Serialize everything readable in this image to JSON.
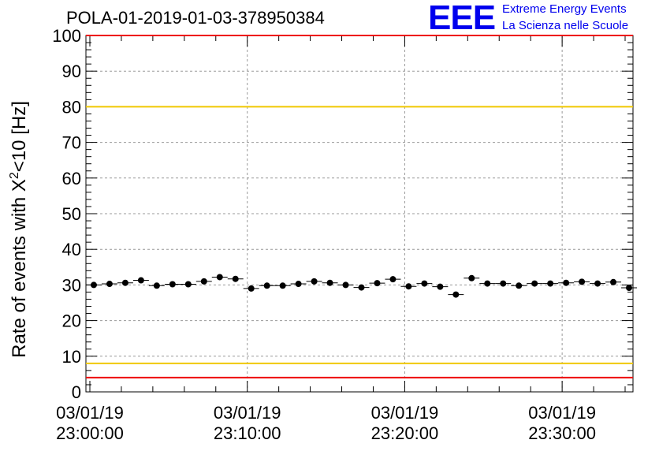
{
  "header": {
    "title": "POLA-01-2019-01-03-378950384",
    "logo_text": "EEE",
    "logo_line1": "Extreme Energy Events",
    "logo_line2": "La Scienza nelle Scuole"
  },
  "colors": {
    "logo": "#0000ee",
    "limit_red": "#ee0000",
    "limit_yellow": "#f0c800",
    "points": "#000000",
    "grid": "#999999"
  },
  "chart_data": {
    "type": "scatter",
    "title": "POLA-01-2019-01-03-378950384",
    "xlabel": "",
    "ylabel": "Rate of events with X²<10 [Hz]",
    "ylabel_parts": {
      "main": "Rate of events with X",
      "sup": "2",
      "tail": "<10 [Hz]"
    },
    "ylim": [
      0,
      100
    ],
    "y_ticks": [
      0,
      10,
      20,
      30,
      40,
      50,
      60,
      70,
      80,
      90,
      100
    ],
    "xlim_minutes": [
      -0.25,
      34.5
    ],
    "x_ticks": [
      {
        "minute": 0,
        "date": "03/01/19",
        "time": "23:00:00"
      },
      {
        "minute": 10,
        "date": "03/01/19",
        "time": "23:10:00"
      },
      {
        "minute": 20,
        "date": "03/01/19",
        "time": "23:20:00"
      },
      {
        "minute": 30,
        "date": "03/01/19",
        "time": "23:30:00"
      }
    ],
    "x_start_time": "23:00:00",
    "grid": true,
    "reference_lines": [
      {
        "y": 100,
        "color": "red"
      },
      {
        "y": 80,
        "color": "yellow"
      },
      {
        "y": 8,
        "color": "yellow"
      },
      {
        "y": 4,
        "color": "red"
      }
    ],
    "series": [
      {
        "x_minutes": [
          0.25,
          1.25,
          2.25,
          3.25,
          4.25,
          5.25,
          6.25,
          7.25,
          8.25,
          9.25,
          10.25,
          11.25,
          12.25,
          13.25,
          14.25,
          15.25,
          16.25,
          17.25,
          18.25,
          19.25,
          20.25,
          21.25,
          22.25,
          23.25,
          24.25,
          25.25,
          26.25,
          27.25,
          28.25,
          29.25,
          30.25,
          31.25,
          32.25,
          33.25,
          34.25
        ],
        "values": [
          30.0,
          30.3,
          30.6,
          31.3,
          29.8,
          30.2,
          30.2,
          31.0,
          32.2,
          31.7,
          29.0,
          29.8,
          29.8,
          30.3,
          31.0,
          30.6,
          30.0,
          29.3,
          30.5,
          31.6,
          29.6,
          30.4,
          29.5,
          27.3,
          31.9,
          30.4,
          30.4,
          29.8,
          30.4,
          30.4,
          30.6,
          30.9,
          30.4,
          30.8,
          29.2
        ],
        "errors": [
          0.5,
          0.5,
          0.5,
          0.5,
          0.5,
          0.5,
          0.5,
          0.5,
          0.5,
          0.5,
          0.5,
          0.5,
          0.5,
          0.5,
          0.5,
          0.5,
          0.5,
          0.5,
          0.5,
          0.5,
          0.5,
          0.5,
          0.5,
          0.5,
          0.5,
          0.5,
          0.5,
          0.5,
          0.5,
          0.5,
          0.5,
          0.5,
          0.5,
          0.5,
          0.5
        ]
      }
    ]
  }
}
